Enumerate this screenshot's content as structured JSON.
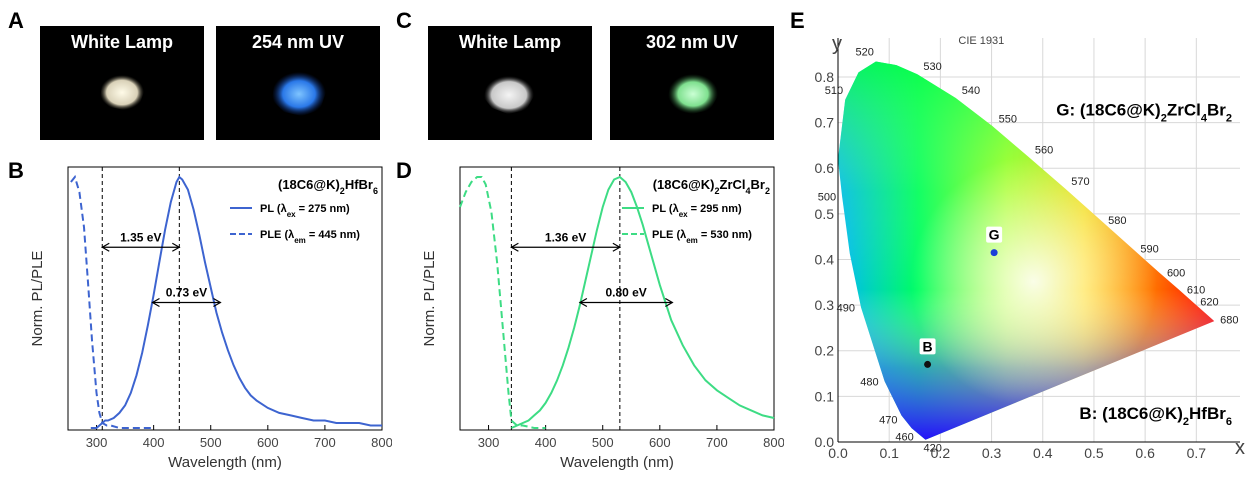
{
  "panels": {
    "a": "A",
    "b": "B",
    "c": "C",
    "d": "D",
    "e": "E"
  },
  "photos": [
    {
      "label": "White Lamp"
    },
    {
      "label": "254 nm UV"
    },
    {
      "label": "White Lamp"
    },
    {
      "label": "302 nm UV"
    }
  ],
  "chart_data": [
    {
      "type": "line",
      "panel": "B",
      "compound_main": "(18C6@K)",
      "compound_sub1": "2",
      "compound_rest": "HfBr",
      "compound_sub2": "6",
      "xlabel": "Wavelength (nm)",
      "ylabel": "Norm. PL/PLE",
      "xlim": [
        250,
        800
      ],
      "xticks": [
        "300",
        "400",
        "500",
        "600",
        "700",
        "800"
      ],
      "color": "#3d64d0",
      "legend": [
        {
          "prefix": "PL (λ",
          "sub": "ex",
          "suffix": " = 275 nm)",
          "style": "solid"
        },
        {
          "prefix": "PLE (λ",
          "sub": "em",
          "suffix": " = 445 nm)",
          "style": "dashed"
        }
      ],
      "vlines": [
        310,
        445
      ],
      "annotations": [
        {
          "text": "1.35 eV",
          "x1": 310,
          "x2": 445,
          "y": 0.72
        },
        {
          "text": "0.73 eV",
          "x1": 398,
          "x2": 517,
          "y": 0.5
        }
      ],
      "series": [
        {
          "name": "PL",
          "style": "solid",
          "x": [
            290,
            300,
            305,
            310,
            315,
            320,
            330,
            340,
            350,
            360,
            370,
            380,
            390,
            400,
            410,
            420,
            430,
            440,
            445,
            450,
            460,
            470,
            480,
            490,
            500,
            510,
            520,
            530,
            540,
            550,
            560,
            570,
            580,
            600,
            620,
            640,
            660,
            680,
            700,
            720,
            740,
            760,
            780,
            800
          ],
          "y": [
            0.0,
            0.0,
            0.01,
            0.02,
            0.03,
            0.03,
            0.04,
            0.06,
            0.09,
            0.14,
            0.21,
            0.3,
            0.41,
            0.53,
            0.66,
            0.79,
            0.9,
            0.98,
            1.0,
            0.99,
            0.95,
            0.87,
            0.77,
            0.66,
            0.56,
            0.46,
            0.38,
            0.31,
            0.25,
            0.2,
            0.16,
            0.13,
            0.11,
            0.08,
            0.06,
            0.05,
            0.04,
            0.03,
            0.03,
            0.02,
            0.02,
            0.02,
            0.01,
            0.01
          ]
        },
        {
          "name": "PLE",
          "style": "dashed",
          "x": [
            255,
            262,
            270,
            278,
            285,
            292,
            300,
            305,
            310,
            318,
            325,
            340,
            360,
            380,
            400
          ],
          "y": [
            0.98,
            1.0,
            0.94,
            0.8,
            0.58,
            0.35,
            0.14,
            0.06,
            0.02,
            0.01,
            0.01,
            0.0,
            0.0,
            0.0,
            0.0
          ]
        }
      ]
    },
    {
      "type": "line",
      "panel": "D",
      "compound_main": "(18C6@K)",
      "compound_sub1": "2",
      "compound_rest": "ZrCl",
      "compound_sub2": "4",
      "compound_rest2": "Br",
      "compound_sub3": "2",
      "xlabel": "Wavelength (nm)",
      "ylabel": "Norm. PL/PLE",
      "xlim": [
        250,
        800
      ],
      "xticks": [
        "300",
        "400",
        "500",
        "600",
        "700",
        "800"
      ],
      "color": "#3ddc84",
      "legend": [
        {
          "prefix": "PL (λ",
          "sub": "ex",
          "suffix": " = 295 nm)",
          "style": "solid"
        },
        {
          "prefix": "PLE (λ",
          "sub": "em",
          "suffix": " = 530 nm)",
          "style": "dashed"
        }
      ],
      "vlines": [
        340,
        530
      ],
      "annotations": [
        {
          "text": "1.36 eV",
          "x1": 340,
          "x2": 530,
          "y": 0.72
        },
        {
          "text": "0.80 eV",
          "x1": 460,
          "x2": 622,
          "y": 0.5
        }
      ],
      "series": [
        {
          "name": "PL",
          "style": "solid",
          "x": [
            340,
            350,
            360,
            370,
            380,
            390,
            400,
            410,
            420,
            430,
            440,
            450,
            460,
            470,
            480,
            490,
            500,
            510,
            520,
            530,
            540,
            550,
            560,
            570,
            580,
            590,
            600,
            620,
            640,
            660,
            680,
            700,
            720,
            740,
            760,
            780,
            800
          ],
          "y": [
            0.0,
            0.01,
            0.02,
            0.03,
            0.05,
            0.07,
            0.1,
            0.14,
            0.19,
            0.25,
            0.32,
            0.4,
            0.49,
            0.59,
            0.69,
            0.79,
            0.88,
            0.95,
            0.99,
            1.0,
            0.98,
            0.94,
            0.88,
            0.81,
            0.73,
            0.65,
            0.57,
            0.43,
            0.33,
            0.25,
            0.19,
            0.15,
            0.12,
            0.09,
            0.07,
            0.05,
            0.04
          ]
        },
        {
          "name": "PLE",
          "style": "dashed",
          "x": [
            250,
            260,
            270,
            280,
            288,
            295,
            305,
            315,
            325,
            335,
            340,
            350,
            360,
            380,
            400
          ],
          "y": [
            0.88,
            0.94,
            0.98,
            1.0,
            1.0,
            0.97,
            0.86,
            0.66,
            0.4,
            0.14,
            0.03,
            0.01,
            0.01,
            0.0,
            0.0
          ]
        }
      ]
    },
    {
      "type": "scatter",
      "panel": "E",
      "title": "CIE 1931",
      "xlabel": "x",
      "ylabel": "y",
      "xlim": [
        0,
        0.75
      ],
      "ylim": [
        0,
        0.85
      ],
      "xticks": [
        "0.0",
        "0.1",
        "0.2",
        "0.3",
        "0.4",
        "0.5",
        "0.6",
        "0.7"
      ],
      "yticks": [
        "0.0",
        "0.1",
        "0.2",
        "0.3",
        "0.4",
        "0.5",
        "0.6",
        "0.7",
        "0.8"
      ],
      "wavelength_labels": [
        {
          "t": "420",
          "x": 0.171,
          "y": 0.005
        },
        {
          "t": "460",
          "x": 0.144,
          "y": 0.03
        },
        {
          "t": "470",
          "x": 0.124,
          "y": 0.058
        },
        {
          "t": "480",
          "x": 0.091,
          "y": 0.133
        },
        {
          "t": "490",
          "x": 0.045,
          "y": 0.295
        },
        {
          "t": "500",
          "x": 0.008,
          "y": 0.538
        },
        {
          "t": "510",
          "x": 0.014,
          "y": 0.75
        },
        {
          "t": "520",
          "x": 0.074,
          "y": 0.834
        },
        {
          "t": "530",
          "x": 0.155,
          "y": 0.806
        },
        {
          "t": "540",
          "x": 0.23,
          "y": 0.754
        },
        {
          "t": "550",
          "x": 0.302,
          "y": 0.692
        },
        {
          "t": "560",
          "x": 0.373,
          "y": 0.624
        },
        {
          "t": "570",
          "x": 0.444,
          "y": 0.555
        },
        {
          "t": "580",
          "x": 0.512,
          "y": 0.487
        },
        {
          "t": "590",
          "x": 0.575,
          "y": 0.424
        },
        {
          "t": "600",
          "x": 0.627,
          "y": 0.372
        },
        {
          "t": "610",
          "x": 0.666,
          "y": 0.334
        },
        {
          "t": "620",
          "x": 0.692,
          "y": 0.308
        },
        {
          "t": "680",
          "x": 0.731,
          "y": 0.269
        }
      ],
      "points": [
        {
          "label": "G",
          "x": 0.305,
          "y": 0.415,
          "color": "#1a3fd8"
        },
        {
          "label": "B",
          "x": 0.175,
          "y": 0.17,
          "color": "#111111"
        }
      ],
      "legend_g": {
        "prefix": "G: (18C6@K)",
        "s1": "2",
        "mid": "ZrCl",
        "s2": "4",
        "mid2": "Br",
        "s3": "2"
      },
      "legend_b": {
        "prefix": "B: (18C6@K)",
        "s1": "2",
        "mid": "HfBr",
        "s2": "6"
      }
    }
  ]
}
